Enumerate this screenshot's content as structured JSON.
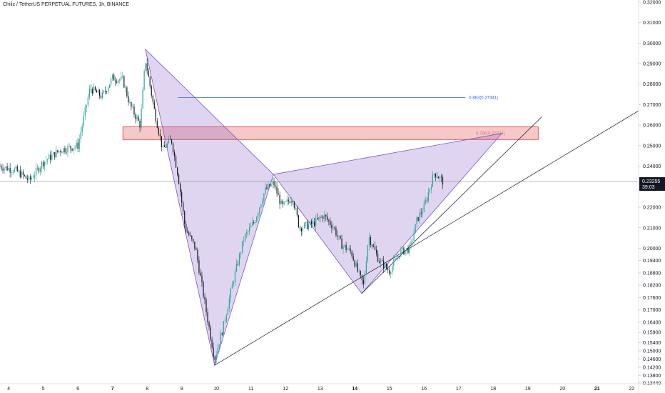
{
  "header": {
    "title": "Chiliz / TetherUS PERPETUAL FUTURES, 1h, BINANCE"
  },
  "colors": {
    "candle_up": "#26a69a",
    "candle_down": "#131722",
    "pattern_fill": "#7e57c2",
    "zone_fill": "#ef9a9a",
    "zone_stroke": "#e53935",
    "fib_line": "#2962ff",
    "trendline": "#131722",
    "price_badge": "#131722"
  },
  "chart_data": {
    "type": "candlestick",
    "y_axis": {
      "ticks": [
        "0.32000",
        "0.31000",
        "0.30000",
        "0.29000",
        "0.28000",
        "0.27000",
        "0.26000",
        "0.25000",
        "0.24000",
        "0.22000",
        "0.21000",
        "0.20000",
        "0.19400",
        "0.18800",
        "0.18200",
        "0.17600",
        "0.17000",
        "0.16400",
        "0.15900",
        "0.15400",
        "0.15000",
        "0.14600",
        "0.14200",
        "0.13800",
        "0.13440"
      ],
      "range": [
        0.134,
        0.321
      ]
    },
    "x_axis": {
      "ticks": [
        "4",
        "5",
        "6",
        "7",
        "8",
        "9",
        "10",
        "11",
        "12",
        "13",
        "14",
        "15",
        "16",
        "17",
        "18",
        "19",
        "20",
        "21",
        "22"
      ],
      "major": [
        "7",
        "14",
        "21"
      ],
      "range": [
        3.75,
        22.2
      ]
    },
    "last_price": {
      "value": "0.23255",
      "countdown": "39:03",
      "y": 0.23255
    },
    "fib_levels": [
      {
        "label": "0.882(0.27341)",
        "value": 0.27341,
        "color": "blue"
      }
    ],
    "zone": {
      "label": "0.786(0.25524)",
      "from": 0.253,
      "to": 0.2592,
      "x_start": 7.3,
      "x_end": 19.3
    },
    "pattern_points": [
      {
        "x": 7.95,
        "y": 0.297
      },
      {
        "x": 9.95,
        "y": 0.143
      },
      {
        "x": 11.65,
        "y": 0.236
      },
      {
        "x": 14.2,
        "y": 0.178
      },
      {
        "x": 18.25,
        "y": 0.256
      }
    ],
    "trendlines": [
      {
        "from": {
          "x": 9.95,
          "y": 0.143
        },
        "to": {
          "x": 22.2,
          "y": 0.267
        }
      },
      {
        "from": {
          "x": 14.2,
          "y": 0.178
        },
        "to": {
          "x": 19.4,
          "y": 0.264
        }
      }
    ],
    "anchors": [
      [
        3.75,
        0.24
      ],
      [
        4.2,
        0.238
      ],
      [
        4.6,
        0.233
      ],
      [
        5.0,
        0.242
      ],
      [
        5.5,
        0.248
      ],
      [
        6.0,
        0.25
      ],
      [
        6.35,
        0.278
      ],
      [
        6.7,
        0.274
      ],
      [
        7.0,
        0.283
      ],
      [
        7.3,
        0.282
      ],
      [
        7.5,
        0.27
      ],
      [
        7.8,
        0.26
      ],
      [
        7.95,
        0.292
      ],
      [
        8.2,
        0.268
      ],
      [
        8.45,
        0.248
      ],
      [
        8.7,
        0.253
      ],
      [
        8.9,
        0.235
      ],
      [
        9.1,
        0.21
      ],
      [
        9.4,
        0.2
      ],
      [
        9.7,
        0.17
      ],
      [
        9.95,
        0.146
      ],
      [
        10.2,
        0.162
      ],
      [
        10.5,
        0.185
      ],
      [
        10.8,
        0.205
      ],
      [
        11.1,
        0.213
      ],
      [
        11.4,
        0.228
      ],
      [
        11.65,
        0.232
      ],
      [
        11.9,
        0.22
      ],
      [
        12.2,
        0.225
      ],
      [
        12.4,
        0.21
      ],
      [
        12.8,
        0.212
      ],
      [
        13.1,
        0.216
      ],
      [
        13.4,
        0.21
      ],
      [
        13.6,
        0.202
      ],
      [
        13.9,
        0.198
      ],
      [
        14.1,
        0.188
      ],
      [
        14.25,
        0.182
      ],
      [
        14.4,
        0.206
      ],
      [
        14.7,
        0.194
      ],
      [
        15.0,
        0.189
      ],
      [
        15.3,
        0.198
      ],
      [
        15.6,
        0.2
      ],
      [
        15.8,
        0.214
      ],
      [
        16.0,
        0.22
      ],
      [
        16.3,
        0.237
      ],
      [
        16.55,
        0.2325
      ]
    ]
  }
}
